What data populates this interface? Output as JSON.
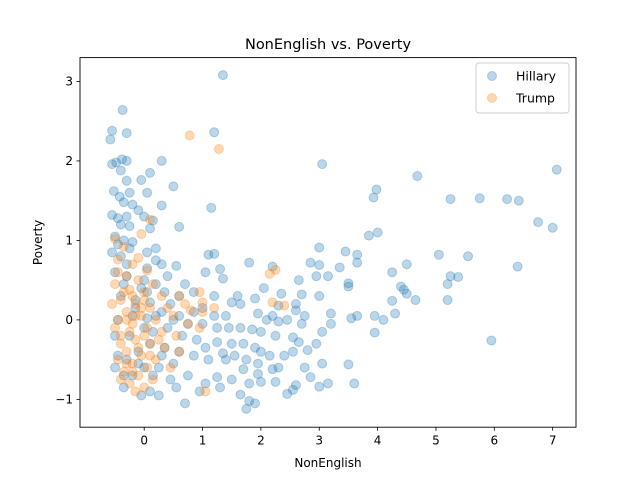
{
  "chart_data": {
    "type": "scatter",
    "title": "NonEnglish vs. Poverty",
    "xlabel": "NonEnglish",
    "ylabel": "Poverty",
    "xlim": [
      -1.1,
      7.4
    ],
    "ylim": [
      -1.35,
      3.3
    ],
    "xticks": [
      0,
      1,
      2,
      3,
      4,
      5,
      6,
      7
    ],
    "yticks": [
      -1,
      0,
      1,
      2,
      3
    ],
    "grid": false,
    "legend_position": "top-right",
    "series": [
      {
        "name": "Hillary",
        "color": "#1f77b4",
        "points": [
          [
            1.35,
            3.08
          ],
          [
            -0.37,
            2.64
          ],
          [
            -0.55,
            2.38
          ],
          [
            -0.3,
            2.35
          ],
          [
            1.2,
            2.36
          ],
          [
            -0.58,
            2.27
          ],
          [
            -0.38,
            2.02
          ],
          [
            -0.3,
            2.0
          ],
          [
            0.3,
            2.0
          ],
          [
            3.05,
            1.96
          ],
          [
            -0.55,
            1.96
          ],
          [
            -0.48,
            1.98
          ],
          [
            -0.4,
            1.88
          ],
          [
            0.1,
            1.85
          ],
          [
            -0.05,
            1.76
          ],
          [
            4.68,
            1.81
          ],
          [
            7.07,
            1.89
          ],
          [
            -0.3,
            1.75
          ],
          [
            0.5,
            1.68
          ],
          [
            3.98,
            1.64
          ],
          [
            -0.52,
            1.62
          ],
          [
            -0.42,
            1.55
          ],
          [
            -0.25,
            1.6
          ],
          [
            0.05,
            1.6
          ],
          [
            3.93,
            1.54
          ],
          [
            5.25,
            1.52
          ],
          [
            5.75,
            1.53
          ],
          [
            6.22,
            1.52
          ],
          [
            6.42,
            1.5
          ],
          [
            -0.35,
            1.48
          ],
          [
            -0.2,
            1.45
          ],
          [
            0.3,
            1.44
          ],
          [
            1.15,
            1.41
          ],
          [
            -0.55,
            1.32
          ],
          [
            -0.45,
            1.28
          ],
          [
            -0.3,
            1.3
          ],
          [
            -0.1,
            1.38
          ],
          [
            0.0,
            1.3
          ],
          [
            6.75,
            1.23
          ],
          [
            7.0,
            1.16
          ],
          [
            -0.4,
            1.2
          ],
          [
            -0.25,
            1.18
          ],
          [
            0.1,
            1.15
          ],
          [
            0.6,
            1.17
          ],
          [
            3.85,
            1.06
          ],
          [
            4.0,
            1.1
          ],
          [
            -0.5,
            1.05
          ],
          [
            -0.35,
            1.0
          ],
          [
            -0.2,
            0.98
          ],
          [
            0.2,
            0.9
          ],
          [
            3.0,
            0.91
          ],
          [
            3.45,
            0.86
          ],
          [
            3.65,
            0.82
          ],
          [
            1.1,
            0.82
          ],
          [
            1.2,
            0.83
          ],
          [
            -0.55,
            0.85
          ],
          [
            -0.4,
            0.8
          ],
          [
            0.05,
            0.85
          ],
          [
            5.05,
            0.82
          ],
          [
            5.55,
            0.8
          ],
          [
            2.85,
            0.72
          ],
          [
            3.0,
            0.69
          ],
          [
            3.35,
            0.66
          ],
          [
            3.65,
            0.72
          ],
          [
            4.5,
            0.7
          ],
          [
            1.3,
            0.64
          ],
          [
            1.8,
            0.72
          ],
          [
            2.2,
            0.67
          ],
          [
            0.3,
            0.7
          ],
          [
            0.55,
            0.68
          ],
          [
            4.25,
            0.6
          ],
          [
            5.25,
            0.55
          ],
          [
            5.38,
            0.54
          ],
          [
            6.4,
            0.67
          ],
          [
            1.35,
            0.52
          ],
          [
            1.05,
            0.6
          ],
          [
            2.65,
            0.5
          ],
          [
            2.95,
            0.55
          ],
          [
            3.15,
            0.55
          ],
          [
            -0.5,
            0.6
          ],
          [
            -0.3,
            0.55
          ],
          [
            0.0,
            0.5
          ],
          [
            0.4,
            0.55
          ],
          [
            5.2,
            0.45
          ],
          [
            3.5,
            0.46
          ],
          [
            3.5,
            0.42
          ],
          [
            4.4,
            0.42
          ],
          [
            4.45,
            0.38
          ],
          [
            0.2,
            0.45
          ],
          [
            0.7,
            0.45
          ],
          [
            2.05,
            0.4
          ],
          [
            2.35,
            0.33
          ],
          [
            2.7,
            0.32
          ],
          [
            3.0,
            0.3
          ],
          [
            1.2,
            0.3
          ],
          [
            1.6,
            0.3
          ],
          [
            1.9,
            0.27
          ],
          [
            0.6,
            0.3
          ],
          [
            0.85,
            0.35
          ],
          [
            4.5,
            0.33
          ],
          [
            4.25,
            0.24
          ],
          [
            4.65,
            0.25
          ],
          [
            5.2,
            0.25
          ],
          [
            1.5,
            0.22
          ],
          [
            1.65,
            0.2
          ],
          [
            2.3,
            0.18
          ],
          [
            2.6,
            0.2
          ],
          [
            -0.15,
            0.25
          ],
          [
            0.1,
            0.22
          ],
          [
            0.45,
            0.2
          ],
          [
            1.0,
            0.15
          ],
          [
            1.2,
            0.05
          ],
          [
            1.4,
            0.05
          ],
          [
            1.95,
            0.08
          ],
          [
            2.2,
            0.05
          ],
          [
            2.6,
            0.12
          ],
          [
            2.75,
            0.05
          ],
          [
            3.2,
            0.08
          ],
          [
            3.55,
            0.02
          ],
          [
            3.65,
            0.05
          ],
          [
            3.95,
            0.05
          ],
          [
            4.1,
            0.0
          ],
          [
            4.3,
            0.08
          ],
          [
            2.1,
            0.0
          ],
          [
            2.3,
            -0.02
          ],
          [
            2.45,
            0.0
          ],
          [
            2.7,
            -0.05
          ],
          [
            3.2,
            -0.05
          ],
          [
            3.05,
            -0.15
          ],
          [
            3.95,
            -0.16
          ],
          [
            5.95,
            -0.26
          ],
          [
            -0.45,
            0.0
          ],
          [
            -0.2,
            0.05
          ],
          [
            0.05,
            0.02
          ],
          [
            0.3,
            0.1
          ],
          [
            0.6,
            0.05
          ],
          [
            0.85,
            0.1
          ],
          [
            1.0,
            -0.05
          ],
          [
            1.25,
            -0.1
          ],
          [
            1.45,
            -0.1
          ],
          [
            1.65,
            -0.1
          ],
          [
            1.85,
            -0.12
          ],
          [
            2.0,
            -0.15
          ],
          [
            2.25,
            -0.2
          ],
          [
            2.55,
            -0.22
          ],
          [
            2.65,
            -0.28
          ],
          [
            2.95,
            -0.3
          ],
          [
            3.5,
            -0.56
          ],
          [
            1.25,
            -0.28
          ],
          [
            1.5,
            -0.3
          ],
          [
            1.7,
            -0.3
          ],
          [
            1.9,
            -0.35
          ],
          [
            2.0,
            -0.4
          ],
          [
            2.15,
            -0.45
          ],
          [
            2.4,
            -0.45
          ],
          [
            2.55,
            -0.4
          ],
          [
            2.8,
            -0.38
          ],
          [
            1.05,
            -0.35
          ],
          [
            1.35,
            -0.42
          ],
          [
            1.55,
            -0.45
          ],
          [
            1.75,
            -0.5
          ],
          [
            1.95,
            -0.55
          ],
          [
            2.3,
            -0.6
          ],
          [
            2.75,
            -0.6
          ],
          [
            3.05,
            -0.55
          ],
          [
            1.1,
            -0.5
          ],
          [
            1.4,
            -0.5
          ],
          [
            1.7,
            -0.62
          ],
          [
            1.95,
            -0.68
          ],
          [
            2.2,
            -0.62
          ],
          [
            2.6,
            -0.82
          ],
          [
            2.85,
            -0.72
          ],
          [
            1.25,
            -0.72
          ],
          [
            1.5,
            -0.75
          ],
          [
            1.8,
            -0.8
          ],
          [
            2.0,
            -0.78
          ],
          [
            2.25,
            -0.78
          ],
          [
            2.55,
            -0.88
          ],
          [
            3.0,
            -0.84
          ],
          [
            3.15,
            -0.8
          ],
          [
            3.6,
            -0.8
          ],
          [
            2.45,
            -0.93
          ],
          [
            1.05,
            -0.8
          ],
          [
            1.3,
            -0.85
          ],
          [
            1.65,
            -0.94
          ],
          [
            1.8,
            -1.02
          ],
          [
            1.9,
            -1.05
          ],
          [
            1.75,
            -1.12
          ],
          [
            0.7,
            -1.05
          ],
          [
            0.95,
            -0.9
          ],
          [
            0.55,
            -0.85
          ],
          [
            0.25,
            -0.95
          ],
          [
            0.1,
            -0.9
          ],
          [
            -0.05,
            -0.95
          ],
          [
            -0.35,
            -0.85
          ],
          [
            -0.5,
            -0.6
          ],
          [
            -0.45,
            -0.45
          ],
          [
            -0.3,
            -0.5
          ],
          [
            -0.1,
            -0.4
          ],
          [
            0.1,
            -0.3
          ],
          [
            0.35,
            -0.35
          ],
          [
            0.6,
            -0.4
          ],
          [
            0.85,
            -0.45
          ],
          [
            0.5,
            -0.55
          ],
          [
            0.25,
            -0.6
          ],
          [
            0.75,
            -0.7
          ],
          [
            0.45,
            -0.75
          ],
          [
            0.15,
            -0.7
          ],
          [
            0.0,
            -0.6
          ],
          [
            -0.2,
            -0.7
          ],
          [
            -0.35,
            -0.7
          ],
          [
            -0.5,
            -0.2
          ],
          [
            -0.4,
            0.3
          ],
          [
            -0.35,
            0.45
          ],
          [
            -0.3,
            0.7
          ],
          [
            -0.45,
            0.95
          ],
          [
            0.05,
            0.65
          ],
          [
            0.2,
            0.75
          ],
          [
            0.35,
            0.35
          ],
          [
            -0.25,
            -0.2
          ],
          [
            0.15,
            -0.15
          ],
          [
            0.4,
            -0.1
          ],
          [
            0.65,
            -0.2
          ],
          [
            0.9,
            -0.25
          ],
          [
            0.3,
            -0.45
          ],
          [
            0.5,
            0.0
          ],
          [
            0.75,
            -0.05
          ],
          [
            -0.15,
            0.15
          ],
          [
            0.0,
            -0.1
          ],
          [
            -0.1,
            -0.55
          ],
          [
            0.2,
            0.05
          ],
          [
            0.05,
            0.35
          ],
          [
            -0.25,
            0.9
          ],
          [
            0.15,
            1.25
          ],
          [
            -0.05,
            0.4
          ]
        ]
      },
      {
        "name": "Trump",
        "color": "#ff7f0e",
        "points": [
          [
            0.78,
            2.32
          ],
          [
            1.28,
            2.15
          ],
          [
            0.1,
            1.26
          ],
          [
            -0.05,
            1.08
          ],
          [
            -0.5,
            1.02
          ],
          [
            -0.35,
            0.92
          ],
          [
            -0.45,
            0.76
          ],
          [
            -0.2,
            0.7
          ],
          [
            -0.1,
            0.78
          ],
          [
            0.05,
            0.62
          ],
          [
            2.15,
            0.58
          ],
          [
            2.25,
            0.63
          ],
          [
            -0.3,
            0.55
          ],
          [
            -0.1,
            0.5
          ],
          [
            0.15,
            0.45
          ],
          [
            -0.5,
            0.45
          ],
          [
            -0.25,
            0.38
          ],
          [
            0.0,
            0.35
          ],
          [
            0.3,
            0.3
          ],
          [
            0.6,
            0.3
          ],
          [
            0.95,
            0.35
          ],
          [
            1.0,
            0.22
          ],
          [
            2.2,
            0.22
          ],
          [
            2.4,
            0.18
          ],
          [
            -0.4,
            0.25
          ],
          [
            -0.15,
            0.2
          ],
          [
            0.1,
            0.15
          ],
          [
            0.4,
            0.15
          ],
          [
            0.8,
            0.12
          ],
          [
            1.0,
            0.1
          ],
          [
            1.2,
            0.15
          ],
          [
            -0.55,
            0.2
          ],
          [
            -0.3,
            0.1
          ],
          [
            -0.05,
            0.05
          ],
          [
            0.2,
            0.0
          ],
          [
            0.5,
            0.05
          ],
          [
            0.75,
            -0.05
          ],
          [
            0.95,
            -0.1
          ],
          [
            -0.45,
            0.0
          ],
          [
            -0.2,
            -0.05
          ],
          [
            0.05,
            -0.1
          ],
          [
            0.3,
            -0.15
          ],
          [
            0.55,
            -0.2
          ],
          [
            -0.4,
            -0.2
          ],
          [
            -0.15,
            -0.25
          ],
          [
            0.1,
            -0.3
          ],
          [
            0.35,
            -0.35
          ],
          [
            -0.3,
            -0.4
          ],
          [
            -0.05,
            -0.45
          ],
          [
            0.2,
            -0.5
          ],
          [
            -0.45,
            -0.5
          ],
          [
            -0.2,
            -0.55
          ],
          [
            0.05,
            -0.6
          ],
          [
            -0.35,
            -0.65
          ],
          [
            -0.1,
            -0.7
          ],
          [
            0.15,
            -0.75
          ],
          [
            -0.25,
            -0.8
          ],
          [
            0.0,
            -0.85
          ],
          [
            -0.4,
            -0.75
          ],
          [
            -0.15,
            -0.9
          ],
          [
            1.05,
            -0.9
          ],
          [
            -0.3,
            0.0
          ],
          [
            -0.25,
            -0.15
          ],
          [
            -0.1,
            -0.35
          ],
          [
            0.0,
            -0.2
          ],
          [
            -0.35,
            0.35
          ],
          [
            -0.2,
            0.3
          ],
          [
            -0.4,
            -0.3
          ],
          [
            -0.05,
            0.15
          ],
          [
            0.1,
            -0.45
          ],
          [
            -0.3,
            -0.55
          ],
          [
            -0.15,
            0.05
          ],
          [
            0.25,
            -0.25
          ],
          [
            -0.45,
            0.6
          ],
          [
            -0.5,
            -0.1
          ],
          [
            0.45,
            -0.6
          ],
          [
            0.6,
            -0.4
          ],
          [
            0.7,
            0.2
          ],
          [
            -0.2,
            -0.65
          ],
          [
            0.0,
            0.25
          ]
        ]
      }
    ]
  }
}
